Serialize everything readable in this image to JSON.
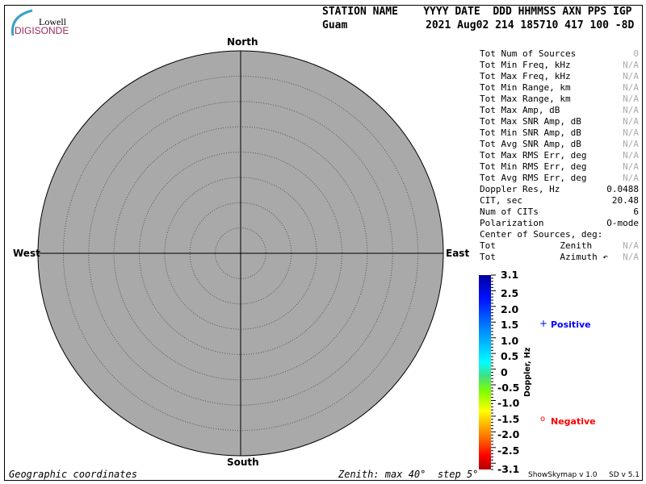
{
  "logo": {
    "line1": "Lowell",
    "line2": "DIGISONDE"
  },
  "header": {
    "labels": "STATION NAME    YYYY DATE  DDD HHMMSS AXN PPS IGP",
    "station": "Guam",
    "values": "2021 Aug02 214 185710 417 100 -8D"
  },
  "skymap": {
    "north": "North",
    "south": "South",
    "east": "East",
    "west": "West",
    "zenith_max_deg": 40,
    "zenith_step_deg": 5,
    "background": "#a9a9a9"
  },
  "stats": [
    {
      "label": "Tot Num of Sources",
      "value": "0",
      "muted": true
    },
    {
      "label": "Tot Min Freq, kHz",
      "value": "N/A",
      "muted": true
    },
    {
      "label": "Tot Max Freq, kHz",
      "value": "N/A",
      "muted": true
    },
    {
      "label": "Tot Min Range, km",
      "value": "N/A",
      "muted": true
    },
    {
      "label": "Tot Max Range, km",
      "value": "N/A",
      "muted": true
    },
    {
      "label": "Tot Max Amp, dB",
      "value": "N/A",
      "muted": true
    },
    {
      "label": "Tot Max SNR Amp, dB",
      "value": "N/A",
      "muted": true
    },
    {
      "label": "Tot Min SNR Amp, dB",
      "value": "N/A",
      "muted": true
    },
    {
      "label": "Tot Avg SNR Amp, dB",
      "value": "N/A",
      "muted": true
    },
    {
      "label": "Tot Max RMS Err, deg",
      "value": "N/A",
      "muted": true
    },
    {
      "label": "Tot Min RMS Err, deg",
      "value": "N/A",
      "muted": true
    },
    {
      "label": "Tot Avg RMS Err, deg",
      "value": "N/A",
      "muted": true
    },
    {
      "label": "Doppler Res, Hz",
      "value": "0.0488",
      "muted": false
    },
    {
      "label": "CIT, sec",
      "value": "20.48",
      "muted": false
    },
    {
      "label": "Num of CITs",
      "value": "6",
      "muted": false
    },
    {
      "label": "Polarization",
      "value": "O-mode",
      "muted": false
    },
    {
      "label": "Center of Sources, deg:",
      "value": "",
      "muted": false
    },
    {
      "label": "Tot            Zenith",
      "value": "N/A",
      "muted": true
    },
    {
      "label": "Tot            Azimuth ↶",
      "value": "N/A",
      "muted": true
    }
  ],
  "colorbar": {
    "title": "Doppler, Hz",
    "ticks": [
      "3.1",
      "2.5",
      "2.0",
      "1.5",
      "1.0",
      "0.5",
      "0",
      "-0.5",
      "-1.0",
      "-1.5",
      "-2.0",
      "-2.5",
      "-3.1"
    ],
    "range": [
      -3.1,
      3.1
    ]
  },
  "legend": {
    "positive": {
      "symbol": "+",
      "label": "Positive",
      "color": "#0000ff"
    },
    "negative": {
      "symbol": "o",
      "label": "Negative",
      "color": "#ff0000"
    }
  },
  "footer": {
    "coords": "Geographic coordinates",
    "zenith": "Zenith: max 40°  step 5°",
    "version1": "ShowSkymap v 1.0",
    "version2": "SD v 5.1"
  }
}
